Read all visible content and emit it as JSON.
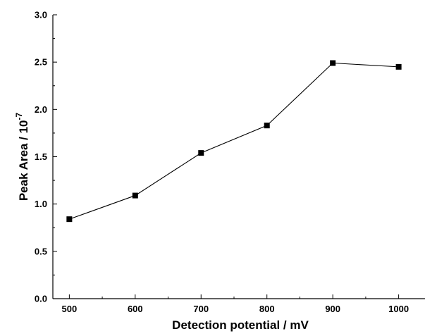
{
  "chart_data": {
    "type": "line",
    "x": [
      500,
      600,
      700,
      800,
      900,
      1000
    ],
    "series": [
      {
        "values": [
          0.84,
          1.09,
          1.54,
          1.83,
          2.49,
          2.45
        ]
      }
    ],
    "xlabel": "Detection potential / mV",
    "ylabel": "Peak Area / 10",
    "ylabel_exponent": "-7",
    "xlim": [
      475,
      1040
    ],
    "ylim": [
      0.0,
      3.0
    ],
    "xticks": [
      500,
      600,
      700,
      800,
      900,
      1000
    ],
    "xtick_labels": [
      "500",
      "600",
      "700",
      "800",
      "900",
      "1000"
    ],
    "yticks": [
      0.0,
      0.5,
      1.0,
      1.5,
      2.0,
      2.5,
      3.0
    ],
    "ytick_labels": [
      "0.0",
      "0.5",
      "1.0",
      "1.5",
      "2.0",
      "2.5",
      "3.0"
    ],
    "marker": "square",
    "grid": false,
    "legend": "none"
  }
}
